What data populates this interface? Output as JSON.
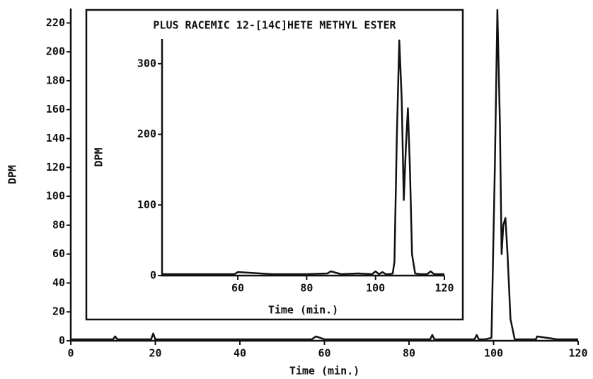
{
  "chart_data": [
    {
      "type": "line",
      "x_label": "Time (min.)",
      "y_label": "DPM",
      "color": "#111111",
      "xlim": [
        0,
        120
      ],
      "ylim": [
        0,
        230
      ],
      "xticks": [
        0,
        20,
        40,
        60,
        80,
        100,
        120
      ],
      "yticks": [
        0,
        20,
        40,
        60,
        80,
        100,
        120,
        140,
        160,
        180,
        200,
        220
      ],
      "x": [
        0,
        5,
        10,
        10.5,
        11,
        15,
        19,
        19.5,
        20,
        25,
        30,
        40,
        50,
        57,
        58,
        60,
        70,
        80,
        85,
        85.5,
        86,
        90,
        95.5,
        96,
        96.5,
        98,
        99.5,
        100.3,
        100.9,
        101.5,
        101.9,
        102.3,
        102.8,
        103.3,
        104,
        105,
        108,
        110,
        110.3,
        115,
        120
      ],
      "values": [
        1,
        1,
        1,
        3,
        1,
        1,
        1,
        5,
        1,
        1,
        1,
        1,
        1,
        1,
        3,
        1,
        1,
        1,
        1,
        4,
        1,
        1,
        1,
        4,
        1,
        1,
        2,
        120,
        229,
        150,
        60,
        80,
        85,
        60,
        15,
        1,
        1,
        1,
        3,
        1,
        1
      ]
    },
    {
      "type": "line",
      "title": "PLUS RACEMIC 12-[14C]HETE METHYL ESTER",
      "x_label": "Time (min.)",
      "y_label": "DPM",
      "color": "#111111",
      "xlim": [
        38,
        120
      ],
      "ylim": [
        0,
        335
      ],
      "xticks": [
        60,
        80,
        100,
        120
      ],
      "yticks": [
        0,
        100,
        200,
        300
      ],
      "x": [
        38,
        50,
        59,
        60,
        70,
        80,
        86,
        87,
        90,
        95,
        99,
        100,
        101,
        102,
        103,
        104,
        105,
        105.5,
        106.2,
        106.9,
        107.6,
        108.2,
        108.8,
        109.4,
        110,
        110.6,
        111.5,
        113,
        115,
        116,
        117,
        120
      ],
      "values": [
        2,
        2,
        2,
        5,
        2,
        2,
        3,
        6,
        2,
        3,
        2,
        6,
        2,
        5,
        2,
        2,
        3,
        20,
        200,
        333,
        250,
        107,
        180,
        237,
        150,
        30,
        3,
        2,
        2,
        6,
        2,
        2
      ]
    }
  ]
}
